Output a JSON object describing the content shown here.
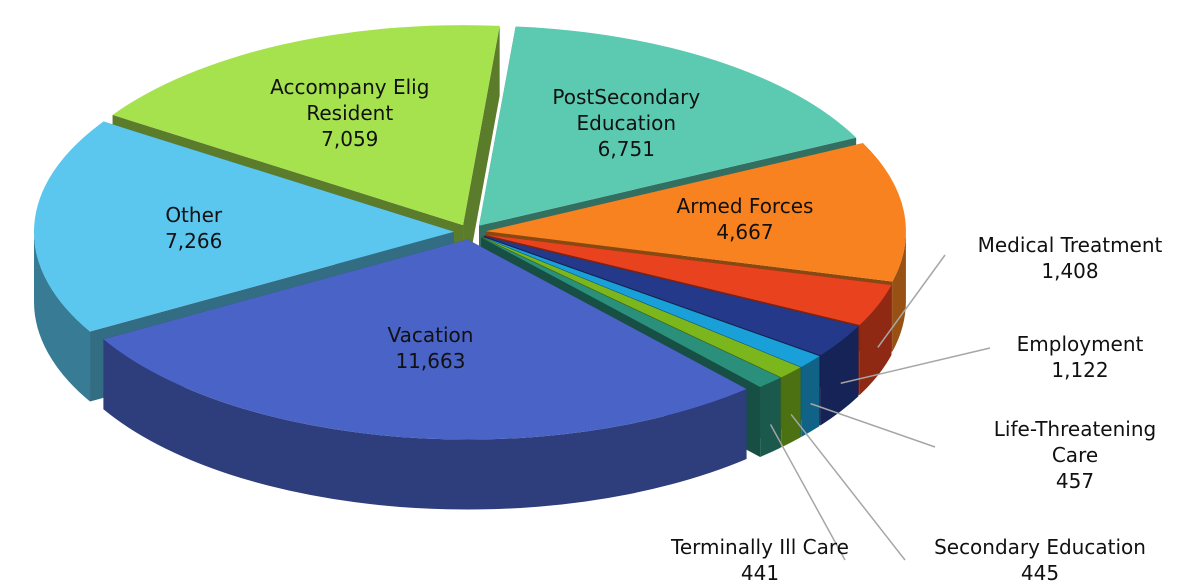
{
  "chart_data": {
    "type": "pie",
    "categories": [
      "PostSecondary Education",
      "Armed Forces",
      "Medical Treatment",
      "Employment",
      "Life-Threatening Care",
      "Secondary Education",
      "Terminally Ill Care",
      "Vacation",
      "Other",
      "Accompany Elig Resident"
    ],
    "values": [
      6751,
      4667,
      1408,
      1122,
      457,
      445,
      441,
      11663,
      7266,
      7059
    ],
    "value_labels": [
      "6,751",
      "4,667",
      "1,408",
      "1,122",
      "457",
      "445",
      "441",
      "11,663",
      "7,266",
      "7,059"
    ],
    "colors": [
      "#5ccab0",
      "#f7821f",
      "#e9421f",
      "#24398a",
      "#1aa0d8",
      "#7bb61d",
      "#2a907b",
      "#4a63c6",
      "#5bc6ee",
      "#a6e24e"
    ]
  }
}
